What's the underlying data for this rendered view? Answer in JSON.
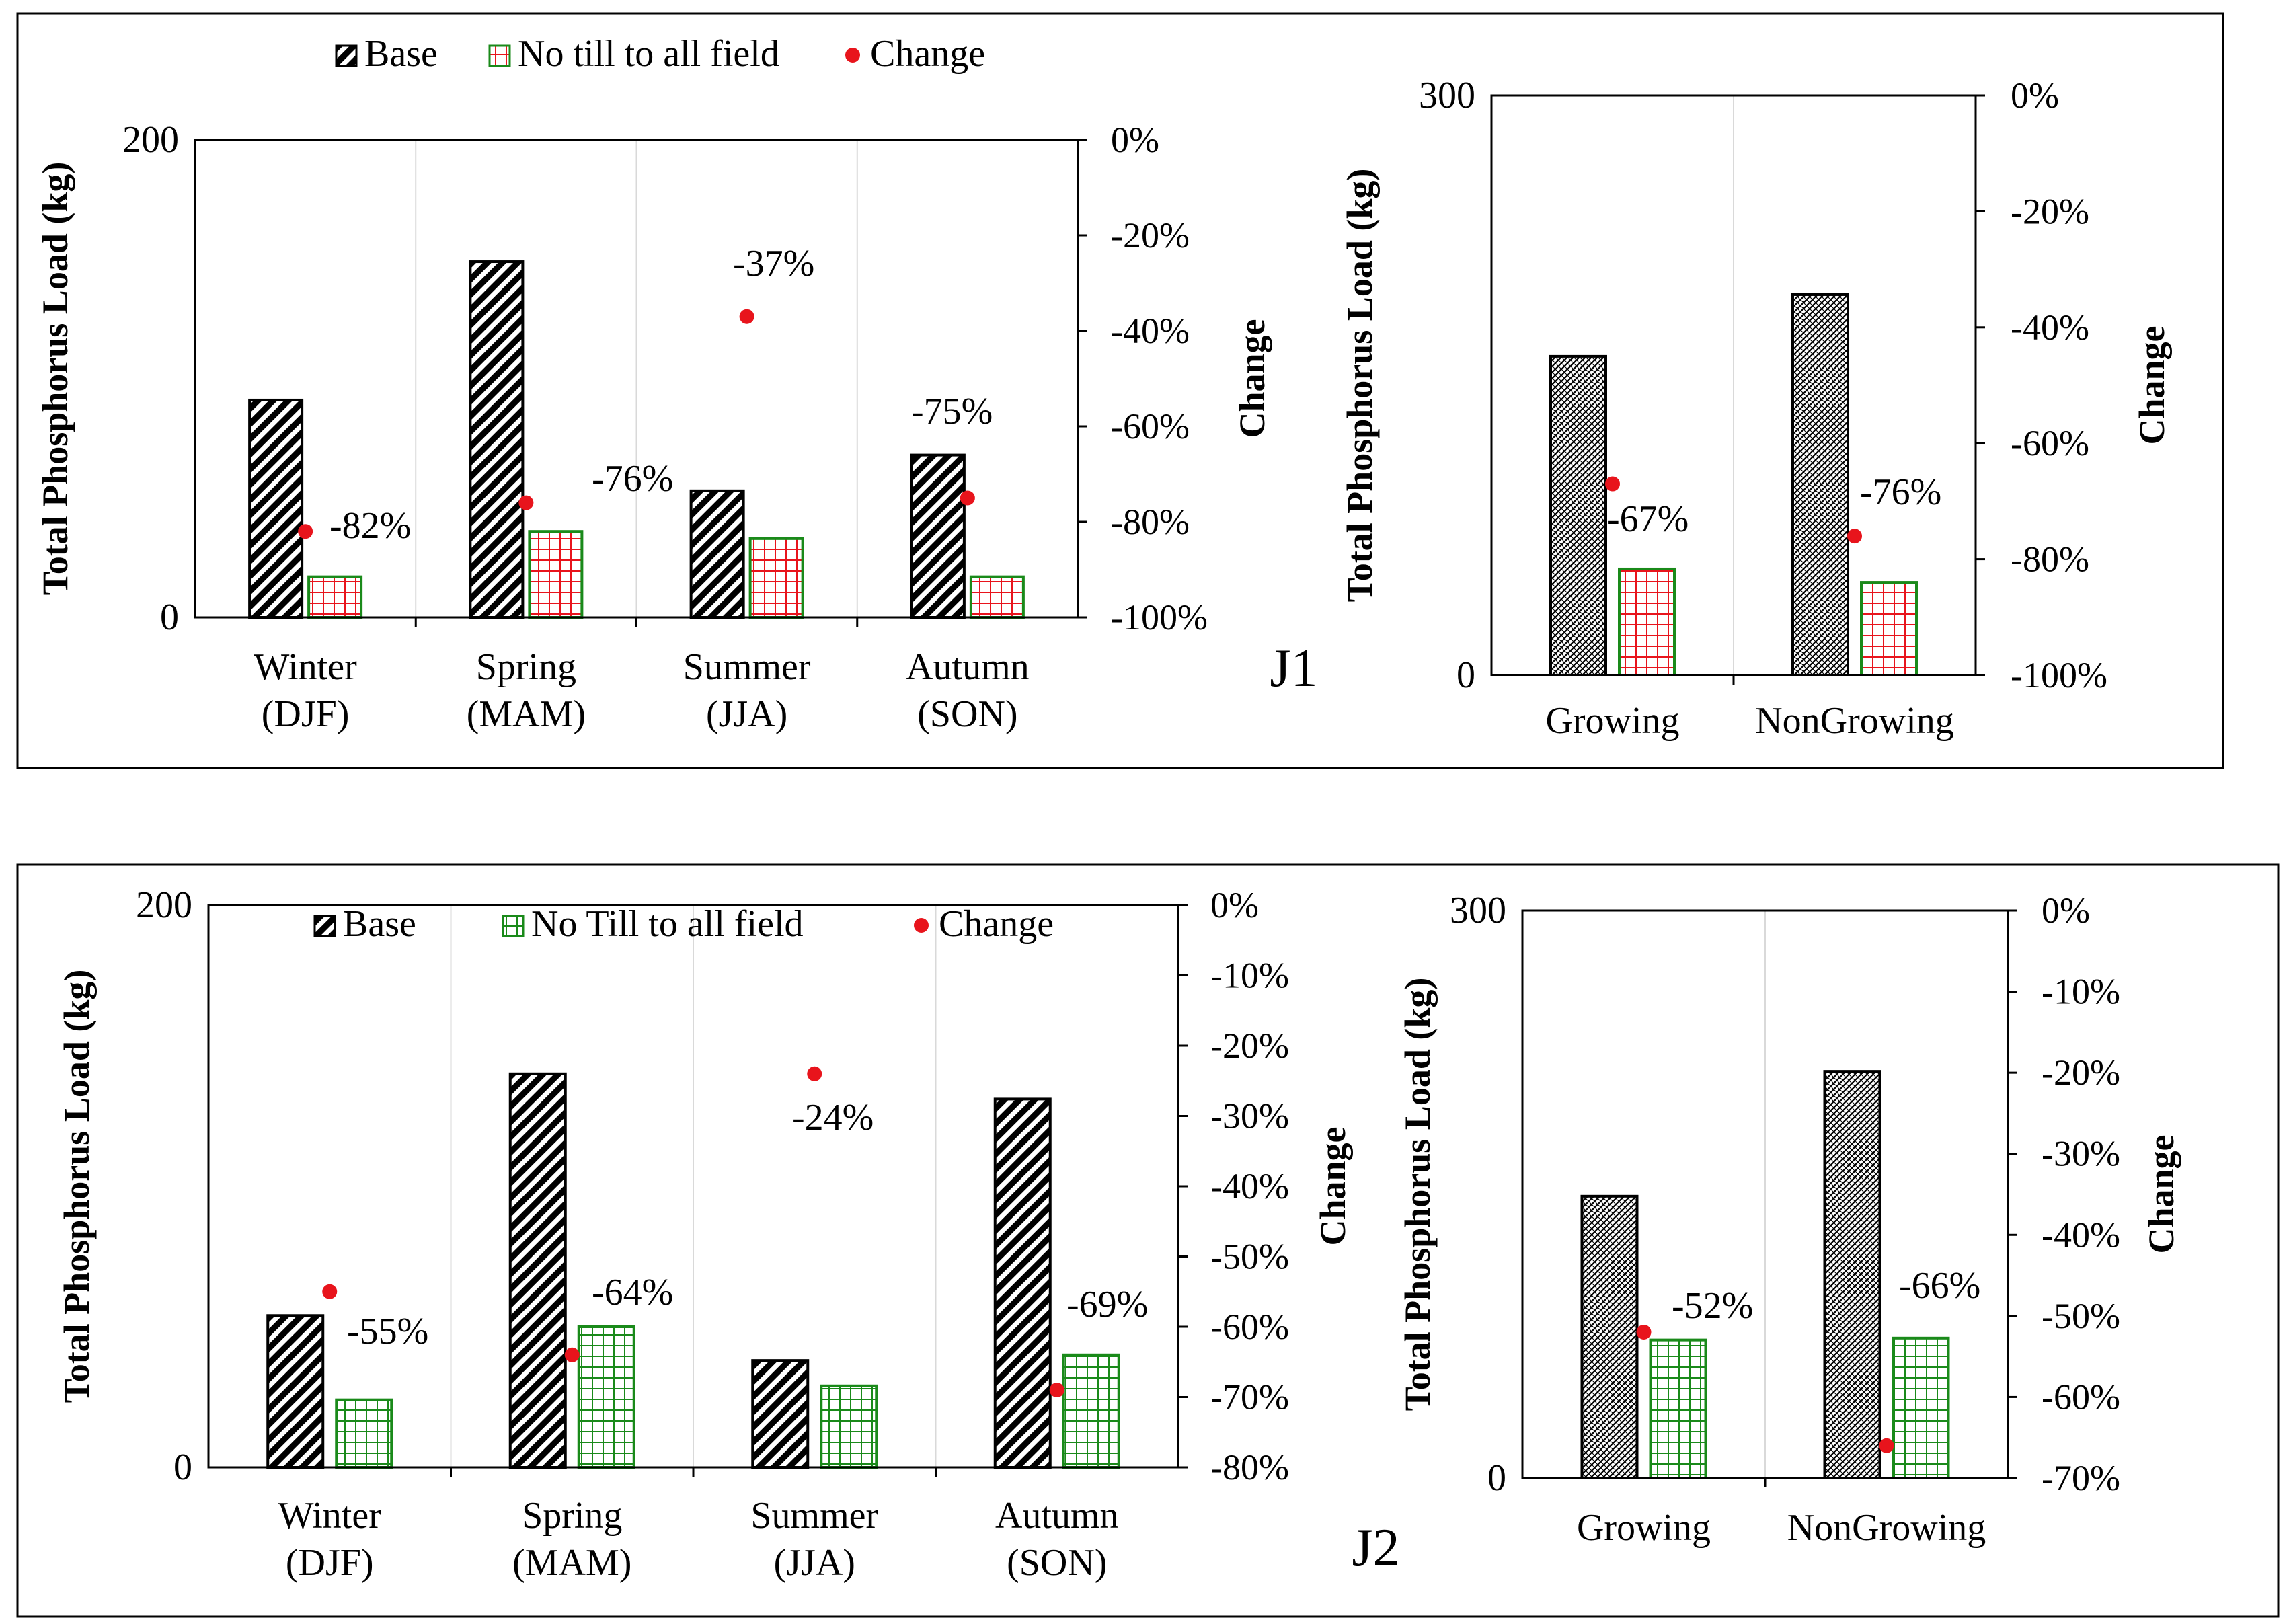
{
  "colors": {
    "base": "#000000",
    "j1_notill": "#e8141c",
    "j2_notill": "#1a8a1a",
    "change": "#e8141c",
    "frame": "#000000",
    "grid": "#d9d9d9"
  },
  "panels": {
    "j1_label": "J1",
    "j2_label": "J2"
  },
  "chart_data": [
    {
      "id": "j1_seasonal",
      "type": "bar",
      "panel": "J1",
      "ylabel": "Total Phosphorus Load (kg)",
      "y2label": "Change",
      "ylim": [
        0,
        200
      ],
      "y_ticks": [
        "200",
        "0"
      ],
      "y2lim": [
        -100,
        0
      ],
      "y2_ticks": [
        "0%",
        "-20%",
        "-40%",
        "-60%",
        "-80%",
        "-100%"
      ],
      "categories": [
        [
          "Winter",
          "(DJF)"
        ],
        [
          "Spring",
          "(MAM)"
        ],
        [
          "Summer",
          "(JJA)"
        ],
        [
          "Autumn",
          "(SON)"
        ]
      ],
      "legend": {
        "base": "Base",
        "treatment": "No till to all field",
        "change": "Change",
        "placement": "top"
      },
      "series": [
        {
          "name": "Base",
          "values": [
            91,
            149,
            53,
            68
          ]
        },
        {
          "name": "No till to all field",
          "values": [
            17,
            36,
            33,
            17
          ]
        }
      ],
      "change": {
        "values": [
          -82,
          -76,
          -37,
          -75
        ],
        "labels": [
          "-82%",
          "-76%",
          "-37%",
          "-75%"
        ]
      }
    },
    {
      "id": "j1_growing",
      "type": "bar",
      "panel": "J1",
      "ylabel": "Total Phosphorus Load (kg)",
      "y2label": "Change",
      "ylim": [
        0,
        300
      ],
      "y_ticks": [
        "300",
        "0"
      ],
      "y2lim": [
        -100,
        0
      ],
      "y2_ticks": [
        "0%",
        "-20%",
        "-40%",
        "-60%",
        "-80%",
        "-100%"
      ],
      "categories": [
        [
          "Growing"
        ],
        [
          "NonGrowing"
        ]
      ],
      "series": [
        {
          "name": "Base",
          "values": [
            165,
            197
          ]
        },
        {
          "name": "No till to all field",
          "values": [
            55,
            48
          ]
        }
      ],
      "change": {
        "values": [
          -67,
          -76
        ],
        "labels": [
          "-67%",
          "-76%"
        ]
      }
    },
    {
      "id": "j2_seasonal",
      "type": "bar",
      "panel": "J2",
      "ylabel": "Total Phosphorus Load (kg)",
      "y2label": "Change",
      "ylim": [
        0,
        200
      ],
      "y_ticks": [
        "200",
        "0"
      ],
      "y2lim": [
        -80,
        0
      ],
      "y2_ticks": [
        "0%",
        "-10%",
        "-20%",
        "-30%",
        "-40%",
        "-50%",
        "-60%",
        "-70%",
        "-80%"
      ],
      "categories": [
        [
          "Winter",
          "(DJF)"
        ],
        [
          "Spring",
          "(MAM)"
        ],
        [
          "Summer",
          "(JJA)"
        ],
        [
          "Autumn",
          "(SON)"
        ]
      ],
      "legend": {
        "base": "Base",
        "treatment": "No Till to all field",
        "change": "Change",
        "placement": "top"
      },
      "series": [
        {
          "name": "Base",
          "values": [
            54,
            140,
            38,
            131
          ]
        },
        {
          "name": "No Till to all field",
          "values": [
            24,
            50,
            29,
            40
          ]
        }
      ],
      "change": {
        "values": [
          -55,
          -64,
          -24,
          -69
        ],
        "labels": [
          "-55%",
          "-64%",
          "-24%",
          "-69%"
        ]
      }
    },
    {
      "id": "j2_growing",
      "type": "bar",
      "panel": "J2",
      "ylabel": "Total Phosphorus Load (kg)",
      "y2label": "Change",
      "ylim": [
        0,
        300
      ],
      "y_ticks": [
        "300",
        "0"
      ],
      "y2lim": [
        -70,
        0
      ],
      "y2_ticks": [
        "0%",
        "-10%",
        "-20%",
        "-30%",
        "-40%",
        "-50%",
        "-60%",
        "-70%"
      ],
      "categories": [
        [
          "Growing"
        ],
        [
          "NonGrowing"
        ]
      ],
      "series": [
        {
          "name": "Base",
          "values": [
            149,
            215
          ]
        },
        {
          "name": "No Till to all field",
          "values": [
            73,
            74
          ]
        }
      ],
      "change": {
        "values": [
          -52,
          -66
        ],
        "labels": [
          "-52%",
          "-66%"
        ]
      }
    }
  ]
}
